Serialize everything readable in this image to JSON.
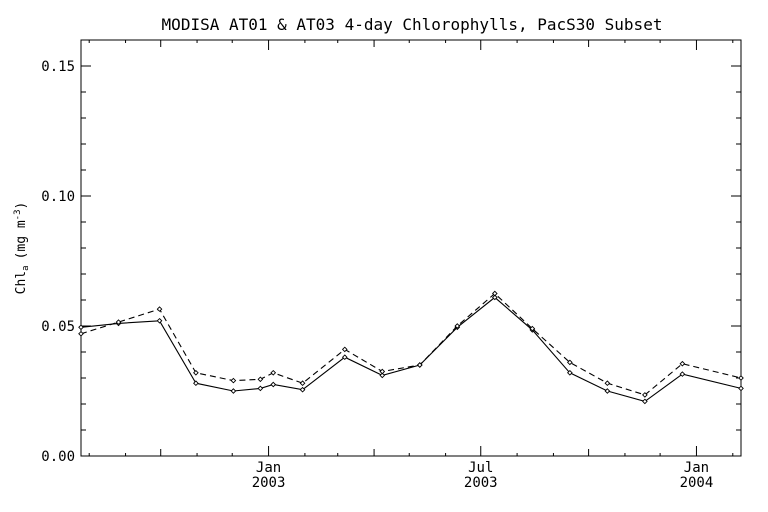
{
  "chart_data": {
    "type": "line",
    "title": "MODISA AT01 & AT03 4-day Chlorophylls, PacS30 Subset",
    "ylabel": "Chl",
    "ylabel_sub": "a",
    "ylabel_unit": "(mg m",
    "ylabel_exp": "-3",
    "ylabel_close": ")",
    "ylim": [
      0.0,
      0.16
    ],
    "xlim": [
      "2002-07-25",
      "2004-02-08"
    ],
    "yticks": [
      {
        "value": 0.0,
        "label": "0.00"
      },
      {
        "value": 0.05,
        "label": "0.05"
      },
      {
        "value": 0.1,
        "label": "0.10"
      },
      {
        "value": 0.15,
        "label": "0.15"
      }
    ],
    "xticks": [
      {
        "date": "2003-01-01",
        "month": "Jan",
        "year": "2003"
      },
      {
        "date": "2003-07-01",
        "month": "Jul",
        "year": "2003"
      },
      {
        "date": "2004-01-01",
        "month": "Jan",
        "year": "2004"
      }
    ],
    "x": [
      "2002-07-25",
      "2002-08-26",
      "2002-09-30",
      "2002-10-31",
      "2002-12-02",
      "2002-12-25",
      "2003-01-05",
      "2003-01-30",
      "2003-03-07",
      "2003-04-08",
      "2003-05-10",
      "2003-06-11",
      "2003-07-13",
      "2003-08-14",
      "2003-09-15",
      "2003-10-17",
      "2003-11-18",
      "2003-12-20",
      "2004-02-08"
    ],
    "series": [
      {
        "line_style": "solid",
        "color": "#000000",
        "values": [
          0.0495,
          0.051,
          0.052,
          0.028,
          0.025,
          0.026,
          0.0275,
          0.0255,
          0.038,
          0.031,
          0.035,
          0.0495,
          0.061,
          0.0485,
          0.032,
          0.025,
          0.021,
          0.0315,
          0.026
        ]
      },
      {
        "line_style": "dashed",
        "color": "#000000",
        "values": [
          0.047,
          0.0515,
          0.0565,
          0.032,
          0.029,
          0.0295,
          0.032,
          0.028,
          0.041,
          0.0325,
          0.035,
          0.05,
          0.0625,
          0.049,
          0.036,
          0.028,
          0.0235,
          0.0355,
          0.03
        ]
      }
    ],
    "grid": false,
    "legend": "none"
  }
}
